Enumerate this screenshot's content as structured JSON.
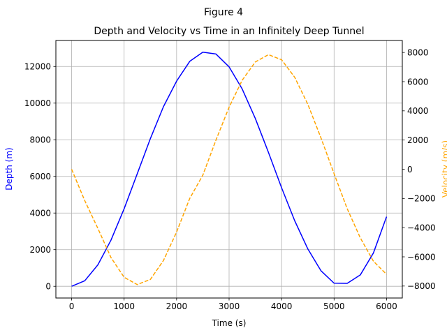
{
  "figure": {
    "suptitle": "Figure 4"
  },
  "chart_data": {
    "type": "line",
    "title": "Depth and Velocity vs Time in an Infinitely Deep Tunnel",
    "xlabel": "Time (s)",
    "ylabel_left": "Depth (m)",
    "ylabel_right": "Velocity (m/s)",
    "xlim": [
      -300,
      6300
    ],
    "ylim_left": [
      -640,
      13420
    ],
    "ylim_right": [
      -8820,
      8820
    ],
    "xticks": [
      0,
      1000,
      2000,
      3000,
      4000,
      5000,
      6000
    ],
    "yticks_left": [
      0,
      2000,
      4000,
      6000,
      8000,
      10000,
      12000
    ],
    "yticks_right": [
      -8000,
      -6000,
      -4000,
      -2000,
      0,
      2000,
      4000,
      6000,
      8000
    ],
    "grid": true,
    "series": [
      {
        "axis": "left",
        "color": "#0000ff",
        "style": "solid",
        "x": [
          0,
          250,
          500,
          750,
          1000,
          1250,
          1500,
          1750,
          2000,
          2250,
          2500,
          2750,
          3000,
          3250,
          3500,
          3750,
          4000,
          4250,
          4500,
          4750,
          5000,
          5250,
          5500,
          5750,
          6000
        ],
        "y": [
          0,
          300,
          1170,
          2520,
          4230,
          6140,
          8060,
          9810,
          11200,
          12280,
          12780,
          12680,
          11980,
          10770,
          9160,
          7310,
          5380,
          3580,
          2040,
          850,
          170,
          160,
          620,
          1820,
          3800
        ]
      },
      {
        "axis": "right",
        "color": "#ffa500",
        "style": "dashed",
        "x": [
          0,
          250,
          500,
          750,
          1000,
          1250,
          1500,
          1750,
          2000,
          2250,
          2500,
          2750,
          3000,
          3250,
          3500,
          3750,
          4000,
          4250,
          4500,
          4750,
          5000,
          5250,
          5500,
          5750,
          6000
        ],
        "y": [
          0,
          -2150,
          -4050,
          -6050,
          -7400,
          -7900,
          -7550,
          -6250,
          -4300,
          -2000,
          -400,
          2000,
          4250,
          6100,
          7350,
          7850,
          7500,
          6300,
          4450,
          2150,
          -300,
          -2700,
          -4700,
          -6300,
          -7200
        ]
      }
    ]
  }
}
